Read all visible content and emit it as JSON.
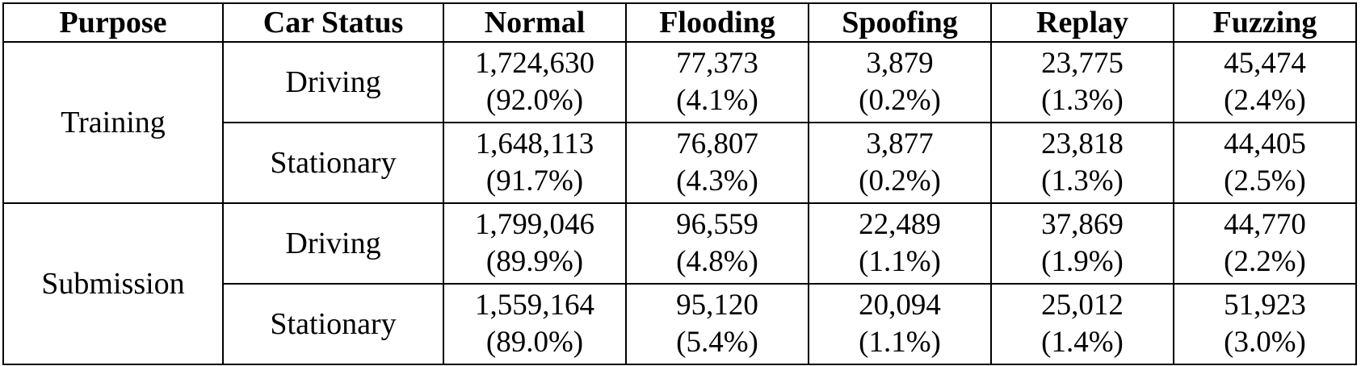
{
  "table": {
    "headers": [
      "Purpose",
      "Car Status",
      "Normal",
      "Flooding",
      "Spoofing",
      "Replay",
      "Fuzzing"
    ],
    "groups": [
      {
        "purpose": "Training",
        "rows": [
          {
            "status": "Driving",
            "cells": [
              {
                "count": "1,724,630",
                "pct": "(92.0%)"
              },
              {
                "count": "77,373",
                "pct": "(4.1%)"
              },
              {
                "count": "3,879",
                "pct": "(0.2%)"
              },
              {
                "count": "23,775",
                "pct": "(1.3%)"
              },
              {
                "count": "45,474",
                "pct": "(2.4%)"
              }
            ]
          },
          {
            "status": "Stationary",
            "cells": [
              {
                "count": "1,648,113",
                "pct": "(91.7%)"
              },
              {
                "count": "76,807",
                "pct": "(4.3%)"
              },
              {
                "count": "3,877",
                "pct": "(0.2%)"
              },
              {
                "count": "23,818",
                "pct": "(1.3%)"
              },
              {
                "count": "44,405",
                "pct": "(2.5%)"
              }
            ]
          }
        ]
      },
      {
        "purpose": "Submission",
        "rows": [
          {
            "status": "Driving",
            "cells": [
              {
                "count": "1,799,046",
                "pct": "(89.9%)"
              },
              {
                "count": "96,559",
                "pct": "(4.8%)"
              },
              {
                "count": "22,489",
                "pct": "(1.1%)"
              },
              {
                "count": "37,869",
                "pct": "(1.9%)"
              },
              {
                "count": "44,770",
                "pct": "(2.2%)"
              }
            ]
          },
          {
            "status": "Stationary",
            "cells": [
              {
                "count": "1,559,164",
                "pct": "(89.0%)"
              },
              {
                "count": "95,120",
                "pct": "(5.4%)"
              },
              {
                "count": "20,094",
                "pct": "(1.1%)"
              },
              {
                "count": "25,012",
                "pct": "(1.4%)"
              },
              {
                "count": "51,923",
                "pct": "(3.0%)"
              }
            ]
          }
        ]
      }
    ]
  }
}
